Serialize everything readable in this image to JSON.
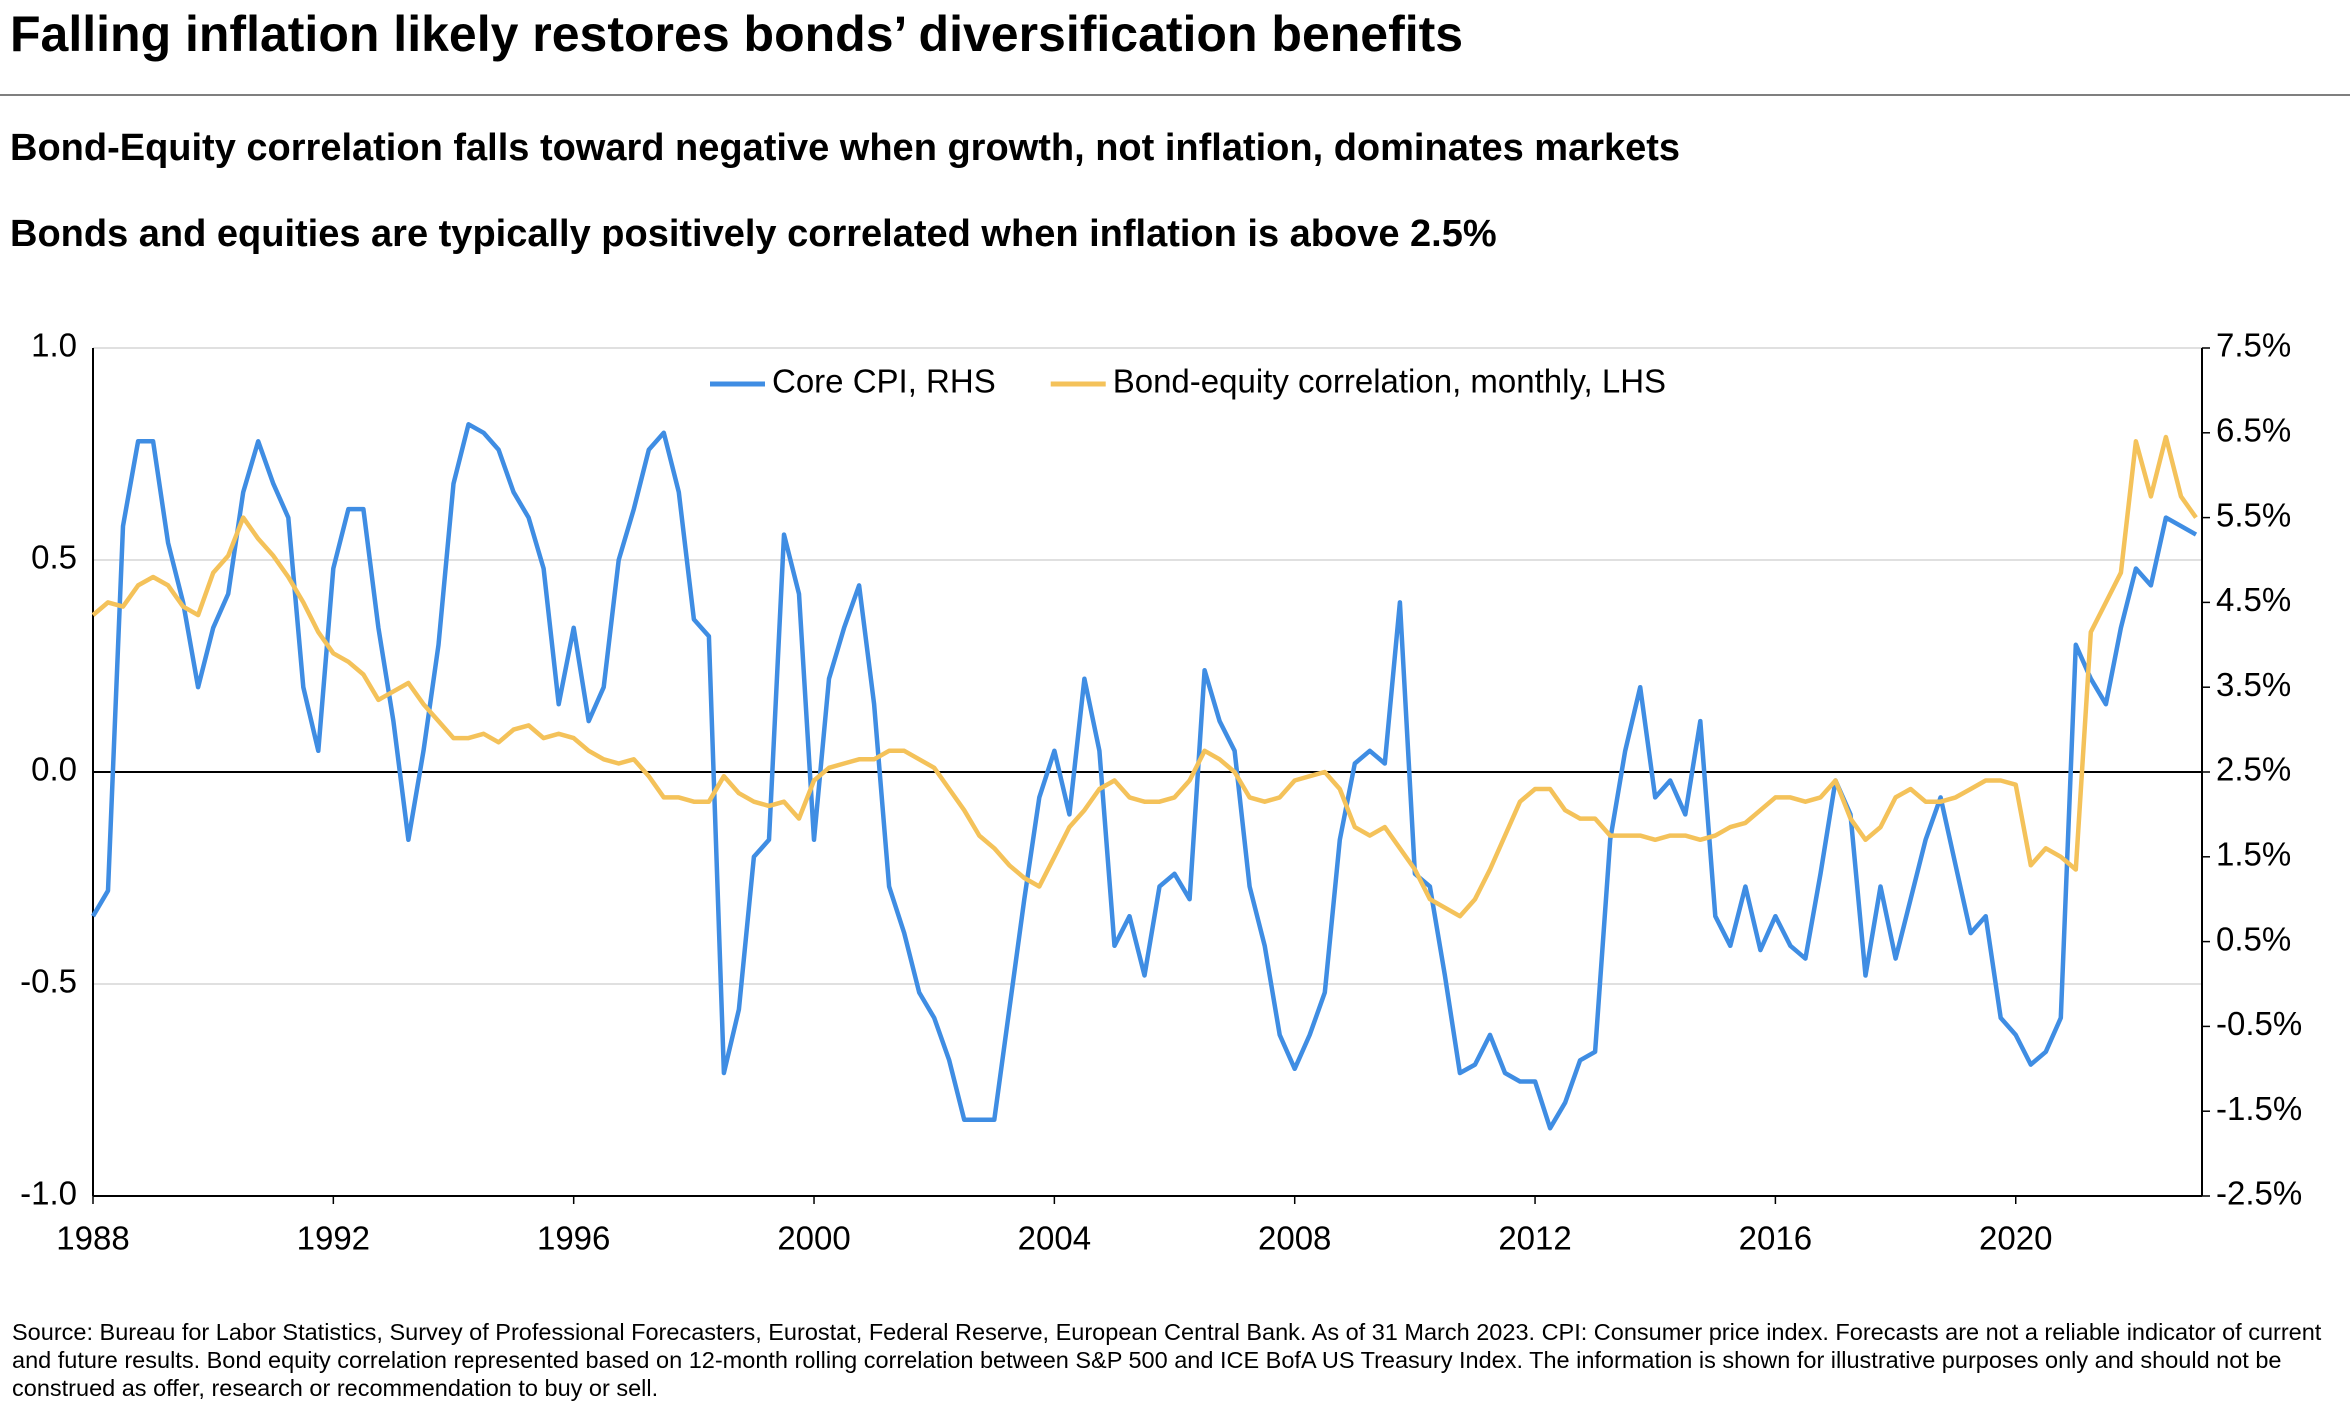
{
  "chart_data": {
    "type": "line",
    "title": "Falling inflation likely restores bonds’ diversification benefits",
    "subtitle": "Bond-Equity correlation falls toward negative when growth, not inflation, dominates markets",
    "subtitle2": "Bonds and equities are typically positively correlated when inflation is above 2.5%",
    "source": "Source: Bureau for Labor Statistics, Survey of Professional Forecasters, Eurostat, Federal Reserve, European Central Bank. As of 31 March 2023. CPI: Consumer price index. Forecasts are not a reliable indicator of current and future results. Bond equity correlation represented based on 12-month rolling correlation between S&P 500 and ICE BofA US Treasury Index. The information is shown for illustrative purposes only and should not be construed as offer, research or recommendation to buy or sell.",
    "x": [
      1988,
      1988.25,
      1988.5,
      1988.75,
      1989,
      1989.25,
      1989.5,
      1989.75,
      1990,
      1990.25,
      1990.5,
      1990.75,
      1991,
      1991.25,
      1991.5,
      1991.75,
      1992,
      1992.25,
      1992.5,
      1992.75,
      1993,
      1993.25,
      1993.5,
      1993.75,
      1994,
      1994.25,
      1994.5,
      1994.75,
      1995,
      1995.25,
      1995.5,
      1995.75,
      1996,
      1996.25,
      1996.5,
      1996.75,
      1997,
      1997.25,
      1997.5,
      1997.75,
      1998,
      1998.25,
      1998.5,
      1998.75,
      1999,
      1999.25,
      1999.5,
      1999.75,
      2000,
      2000.25,
      2000.5,
      2000.75,
      2001,
      2001.25,
      2001.5,
      2001.75,
      2002,
      2002.25,
      2002.5,
      2002.75,
      2003,
      2003.25,
      2003.5,
      2003.75,
      2004,
      2004.25,
      2004.5,
      2004.75,
      2005,
      2005.25,
      2005.5,
      2005.75,
      2006,
      2006.25,
      2006.5,
      2006.75,
      2007,
      2007.25,
      2007.5,
      2007.75,
      2008,
      2008.25,
      2008.5,
      2008.75,
      2009,
      2009.25,
      2009.5,
      2009.75,
      2010,
      2010.25,
      2010.5,
      2010.75,
      2011,
      2011.25,
      2011.5,
      2011.75,
      2012,
      2012.25,
      2012.5,
      2012.75,
      2013,
      2013.25,
      2013.5,
      2013.75,
      2014,
      2014.25,
      2014.5,
      2014.75,
      2015,
      2015.25,
      2015.5,
      2015.75,
      2016,
      2016.25,
      2016.5,
      2016.75,
      2017,
      2017.25,
      2017.5,
      2017.75,
      2018,
      2018.25,
      2018.5,
      2018.75,
      2019,
      2019.25,
      2019.5,
      2019.75,
      2020,
      2020.25,
      2020.5,
      2020.75,
      2021,
      2021.25,
      2021.5,
      2021.75,
      2022,
      2022.25,
      2022.5,
      2022.75,
      2023
    ],
    "series": [
      {
        "name": "Core CPI, RHS",
        "color": "#3f8de3",
        "axis": "y2",
        "values": [
          0.8,
          1.1,
          5.4,
          6.4,
          6.4,
          5.2,
          4.5,
          3.5,
          4.2,
          4.6,
          5.8,
          6.4,
          5.9,
          5.5,
          3.5,
          2.75,
          4.9,
          5.6,
          5.6,
          4.2,
          3.1,
          1.7,
          2.75,
          4.0,
          5.9,
          6.6,
          6.5,
          6.3,
          5.8,
          5.5,
          4.9,
          3.3,
          4.2,
          3.1,
          3.5,
          5.0,
          5.6,
          6.3,
          6.5,
          5.8,
          4.3,
          4.1,
          -1.05,
          -0.3,
          1.5,
          1.7,
          5.3,
          4.6,
          1.7,
          3.6,
          4.2,
          4.7,
          3.3,
          1.15,
          0.6,
          -0.1,
          -0.4,
          -0.9,
          -1.6,
          -1.6,
          -1.6,
          -0.3,
          1.0,
          2.2,
          2.75,
          2.0,
          3.6,
          2.75,
          0.45,
          0.8,
          0.1,
          1.15,
          1.3,
          1.0,
          3.7,
          3.1,
          2.75,
          1.15,
          0.45,
          -0.6,
          -1.0,
          -0.6,
          -0.1,
          1.7,
          2.6,
          2.75,
          2.6,
          4.5,
          1.3,
          1.15,
          0.1,
          -1.05,
          -0.95,
          -0.6,
          -1.05,
          -1.15,
          -1.15,
          -1.7,
          -1.4,
          -0.9,
          -0.8,
          1.7,
          2.75,
          3.5,
          2.2,
          2.4,
          2.0,
          3.1,
          0.8,
          0.45,
          1.15,
          0.4,
          0.8,
          0.45,
          0.3,
          1.3,
          2.4,
          2.0,
          0.1,
          1.15,
          0.3,
          1.0,
          1.7,
          2.2,
          1.4,
          0.6,
          0.8,
          -0.4,
          -0.6,
          -0.95,
          -0.8,
          -0.4,
          4.0,
          3.6,
          3.3,
          4.2,
          4.9,
          4.7,
          5.5,
          5.4,
          5.3
        ]
      },
      {
        "name": "Bond-equity correlation, monthly, LHS",
        "color": "#f4c25a",
        "axis": "y",
        "values": [
          0.37,
          0.4,
          0.39,
          0.44,
          0.46,
          0.44,
          0.39,
          0.37,
          0.47,
          0.51,
          0.6,
          0.55,
          0.51,
          0.46,
          0.4,
          0.33,
          0.28,
          0.26,
          0.23,
          0.17,
          0.19,
          0.21,
          0.16,
          0.12,
          0.08,
          0.08,
          0.09,
          0.07,
          0.1,
          0.11,
          0.08,
          0.09,
          0.08,
          0.05,
          0.03,
          0.02,
          0.03,
          -0.01,
          -0.06,
          -0.06,
          -0.07,
          -0.07,
          -0.01,
          -0.05,
          -0.07,
          -0.08,
          -0.07,
          -0.11,
          -0.02,
          0.01,
          0.02,
          0.03,
          0.03,
          0.05,
          0.05,
          0.03,
          0.01,
          -0.04,
          -0.09,
          -0.15,
          -0.18,
          -0.22,
          -0.25,
          -0.27,
          -0.2,
          -0.13,
          -0.09,
          -0.04,
          -0.02,
          -0.06,
          -0.07,
          -0.07,
          -0.06,
          -0.02,
          0.05,
          0.03,
          0.0,
          -0.06,
          -0.07,
          -0.06,
          -0.02,
          -0.01,
          0.0,
          -0.04,
          -0.13,
          -0.15,
          -0.13,
          -0.18,
          -0.23,
          -0.3,
          -0.32,
          -0.34,
          -0.3,
          -0.23,
          -0.15,
          -0.07,
          -0.04,
          -0.04,
          -0.09,
          -0.11,
          -0.11,
          -0.15,
          -0.15,
          -0.15,
          -0.16,
          -0.15,
          -0.15,
          -0.16,
          -0.15,
          -0.13,
          -0.12,
          -0.09,
          -0.06,
          -0.06,
          -0.07,
          -0.06,
          -0.02,
          -0.11,
          -0.16,
          -0.13,
          -0.06,
          -0.04,
          -0.07,
          -0.07,
          -0.06,
          -0.04,
          -0.02,
          -0.02,
          -0.03,
          -0.22,
          -0.18,
          -0.2,
          -0.23,
          0.33,
          0.4,
          0.47,
          0.78,
          0.65,
          0.79,
          0.65,
          0.6
        ]
      }
    ],
    "xlim": [
      1988,
      2023.1
    ],
    "xticks": [
      1988,
      1992,
      1996,
      2000,
      2004,
      2008,
      2012,
      2016,
      2020
    ],
    "ylim": [
      -1,
      1
    ],
    "yticks": [
      {
        "value": -1,
        "label": "-1.0"
      },
      -0.5,
      {
        "value": 0,
        "label": "0.0"
      },
      0.5,
      {
        "value": 1,
        "label": "1.0"
      }
    ],
    "y2lim": [
      -2.5,
      7.5
    ],
    "y2ticks": [
      {
        "value": -2.5,
        "label": "-2.5%"
      },
      {
        "value": -1.5,
        "label": "-1.5%"
      },
      {
        "value": -0.5,
        "label": "-0.5%"
      },
      {
        "value": 0.5,
        "label": "0.5%"
      },
      {
        "value": 1.5,
        "label": "1.5%"
      },
      {
        "value": 2.5,
        "label": "2.5%"
      },
      {
        "value": 3.5,
        "label": "3.5%"
      },
      {
        "value": 4.5,
        "label": "4.5%"
      },
      {
        "value": 5.5,
        "label": "5.5%"
      },
      {
        "value": 6.5,
        "label": "6.5%"
      },
      {
        "value": 7.5,
        "label": "7.5%"
      }
    ],
    "grid": true,
    "legend": "top"
  }
}
